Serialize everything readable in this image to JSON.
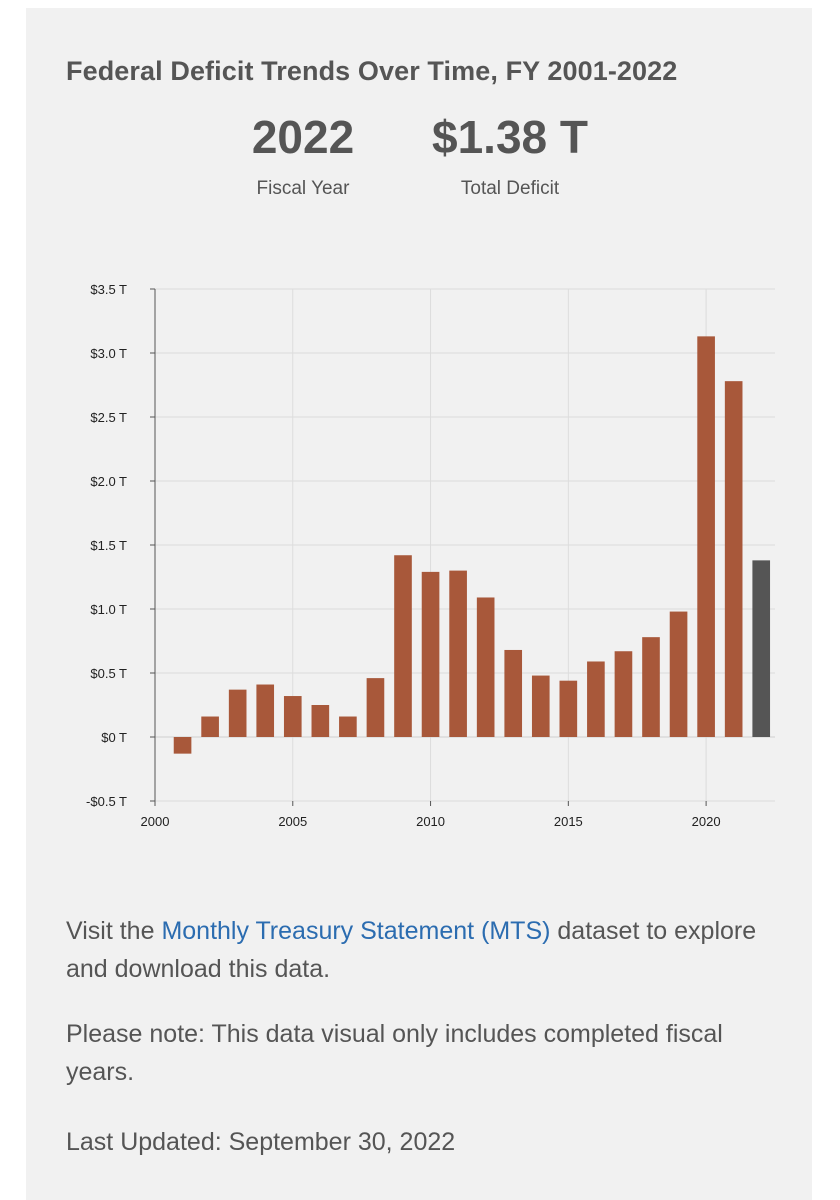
{
  "header": {
    "title": "Federal Deficit Trends Over Time, FY 2001-2022",
    "fiscal_year_value": "2022",
    "fiscal_year_label": "Fiscal Year",
    "total_deficit_value": "$1.38 T",
    "total_deficit_label": "Total Deficit"
  },
  "chart_data": {
    "type": "bar",
    "title": "Federal Deficit Trends Over Time, FY 2001-2022",
    "xlabel": "",
    "ylabel": "",
    "x": [
      2001,
      2002,
      2003,
      2004,
      2005,
      2006,
      2007,
      2008,
      2009,
      2010,
      2011,
      2012,
      2013,
      2014,
      2015,
      2016,
      2017,
      2018,
      2019,
      2020,
      2021,
      2022
    ],
    "values": [
      -0.13,
      0.16,
      0.37,
      0.41,
      0.32,
      0.25,
      0.16,
      0.46,
      1.42,
      1.29,
      1.3,
      1.09,
      0.68,
      0.48,
      0.44,
      0.59,
      0.67,
      0.78,
      0.98,
      3.13,
      2.78,
      1.38
    ],
    "highlight_index": 21,
    "unit": "T",
    "xlim": [
      2000,
      2022.5
    ],
    "ylim": [
      -0.5,
      3.5
    ],
    "x_ticks": [
      2000,
      2005,
      2010,
      2015,
      2020
    ],
    "x_tick_labels": [
      "2000",
      "2005",
      "2010",
      "2015",
      "2020"
    ],
    "y_ticks": [
      -0.5,
      0,
      0.5,
      1.0,
      1.5,
      2.0,
      2.5,
      3.0,
      3.5
    ],
    "y_tick_labels": [
      "-$0.5 T",
      "$0 T",
      "$0.5 T",
      "$1.0 T",
      "$1.5 T",
      "$2.0 T",
      "$2.5 T",
      "$3.0 T",
      "$3.5 T"
    ],
    "grid": true,
    "bar_color": "#a8583a",
    "highlight_color": "#555555"
  },
  "footer": {
    "visit_prefix": "Visit the ",
    "visit_link": "Monthly Treasury Statement (MTS)",
    "visit_suffix": " dataset to explore and download this data.",
    "note": "Please note: This data visual only includes completed fiscal years.",
    "last_updated": "Last Updated: September 30, 2022"
  },
  "colors": {
    "background": "#f1f1f1",
    "text": "#555555",
    "link": "#2b6cb0"
  }
}
